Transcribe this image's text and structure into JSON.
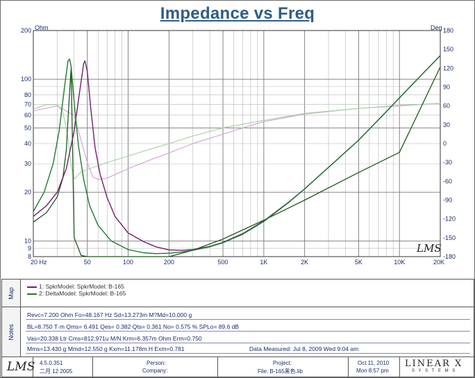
{
  "chart_data": {
    "type": "line",
    "title": "Impedance vs Freq",
    "xscale": "log",
    "xlim": [
      20,
      20000
    ],
    "y_left": {
      "unit": "Ohm",
      "scale": "log",
      "lim": [
        8,
        200
      ],
      "ticks": [
        8,
        9,
        10,
        20,
        30,
        40,
        50,
        60,
        70,
        80,
        100,
        200
      ],
      "tick_labels": [
        "8",
        "9",
        "10",
        "20",
        "30",
        "40",
        "50",
        "60",
        "70",
        "80",
        "100",
        "200"
      ]
    },
    "y_right": {
      "unit": "Deg",
      "lim": [
        -180,
        180
      ],
      "ticks": [
        -180,
        -150,
        -120,
        -90,
        -60,
        -30,
        0,
        30,
        60,
        90,
        120,
        150,
        180
      ],
      "tick_labels": [
        "-180",
        "-150",
        "-120",
        "-90",
        "-60",
        "-30",
        "0",
        "30",
        "60",
        "90",
        "120",
        "150",
        "180"
      ]
    },
    "x_ticks": [
      20,
      50,
      100,
      200,
      500,
      1000,
      2000,
      5000,
      10000,
      20000
    ],
    "x_tick_labels": [
      "20  Hz",
      "50",
      "100",
      "200",
      "500",
      "1K",
      "2K",
      "5K",
      "10K",
      "20K"
    ],
    "grid": true,
    "series": [
      {
        "name": "1: SpkrModel: SpkrModel: B-165",
        "color": "#6e1f6e",
        "axis": "left",
        "x": [
          20,
          25,
          30,
          35,
          40,
          44,
          47,
          48,
          50,
          53,
          57,
          62,
          70,
          80,
          100,
          130,
          160,
          200,
          250,
          300,
          400,
          500,
          700,
          1000,
          1500,
          2000,
          3000,
          5000,
          8000,
          12000,
          20000
        ],
        "values": [
          14.2,
          16.5,
          20,
          28,
          48,
          85,
          125,
          130,
          112,
          66,
          38,
          26,
          18.5,
          14.2,
          11.2,
          9.9,
          9.2,
          8.8,
          8.75,
          8.85,
          9.25,
          9.8,
          11.1,
          13.3,
          17.2,
          21,
          28.5,
          42,
          63,
          90,
          140
        ]
      },
      {
        "name": "2: DeltaModel: SpkrModel: B-165",
        "color": "#1e7a2e",
        "axis": "left",
        "x": [
          20,
          24,
          28,
          31,
          34,
          36,
          37,
          38,
          40,
          43,
          47,
          52,
          60,
          75,
          100,
          130,
          160,
          200,
          250,
          300,
          400,
          500,
          700,
          1000,
          1500,
          2000,
          3000,
          5000,
          8000,
          12000,
          20000
        ],
        "values": [
          15.2,
          20,
          30,
          48,
          90,
          130,
          133,
          120,
          72,
          39,
          24,
          16.5,
          12.5,
          10,
          8.85,
          8.45,
          8.35,
          8.4,
          8.55,
          8.75,
          9.2,
          9.75,
          11,
          13.2,
          17.1,
          21,
          28.5,
          42,
          63,
          90,
          140
        ]
      },
      {
        "name": "1: SpkrModel: SpkrModel: B-165 (phase)",
        "color": "#d7a4d7",
        "axis": "right",
        "x": [
          20,
          30,
          40,
          45,
          50,
          55,
          60,
          70,
          100,
          150,
          200,
          300,
          500,
          700,
          1000,
          2000,
          5000,
          10000,
          20000
        ],
        "values": [
          52,
          60,
          45,
          5,
          -30,
          -53,
          -57,
          -55,
          -40,
          -25,
          -15,
          0,
          15,
          25,
          35,
          47,
          56,
          60,
          64
        ]
      },
      {
        "name": "2: DeltaModel: SpkrModel: B-165 (phase)",
        "color": "#a8d4a8",
        "axis": "right",
        "x": [
          20,
          25,
          30,
          33,
          36,
          38,
          40,
          45,
          55,
          70,
          100,
          150,
          200,
          300,
          500,
          1000,
          2000,
          5000,
          10000,
          20000
        ],
        "values": [
          55,
          62,
          62,
          50,
          10,
          -35,
          -57,
          -45,
          -38,
          -30,
          -20,
          -8,
          0,
          12,
          25,
          37,
          48,
          56,
          61,
          64
        ]
      },
      {
        "name": "phase (overlap)",
        "color": "#1e5a1e",
        "axis": "right",
        "x": [
          20,
          25,
          30,
          33,
          35,
          36.5,
          38,
          40,
          45,
          50,
          60,
          80,
          100,
          150,
          200,
          300,
          500,
          1000,
          2000,
          5000,
          10000,
          20000
        ],
        "values": [
          -125,
          -110,
          -85,
          -55,
          -10,
          60,
          120,
          -150,
          -178,
          -182,
          -182,
          -182,
          -182,
          -182,
          -180,
          -170,
          -152,
          -122,
          -90,
          -46,
          -14,
          122
        ]
      }
    ]
  },
  "legend": {
    "panel_label": "Map",
    "items": [
      {
        "label": "1: SpkrModel: SpkrModel: B-165",
        "color": "#6e1f6e"
      },
      {
        "label": "2: DeltaModel: SpkrModel: B-165",
        "color": "#1e7a2e"
      }
    ]
  },
  "notes": {
    "panel_label": "Notes",
    "line1": "Revc=7.200 Ohm  Fo=48.167 Hz  Sd=13.273m M?Md=10.000 g",
    "line2": "BL=8.750 T·m  Qms= 6.491  Qes= 0.382  Qts= 0.361  No= 0.575 %  SPLo= 89.6 dB",
    "line3": "Vas=20.338 Ltr  Cms=812.971u M/N  Krm=6.357m Ohm  Erm=0.750",
    "line4": "Mms=13.430 g  Mmd=12.550 g  Kxm=11.178m H  Exm=0.781",
    "measured": "Data Measured:  Jul  8, 2009  Wed  9:04 am"
  },
  "footer": {
    "lms_logo": "LMS",
    "version": "4.5.0.351",
    "version_date": "二月 12 2005",
    "person_label": "Person:",
    "company_label": "Company:",
    "project_label": "Project:",
    "file_label": "File: B-165黑色.lib",
    "date": "Oct 11, 2010",
    "time": "Mon  8:57 pm",
    "brand_top": "LINEAR X",
    "brand_bottom": "S Y S T E M S"
  },
  "watermark": "LMS"
}
